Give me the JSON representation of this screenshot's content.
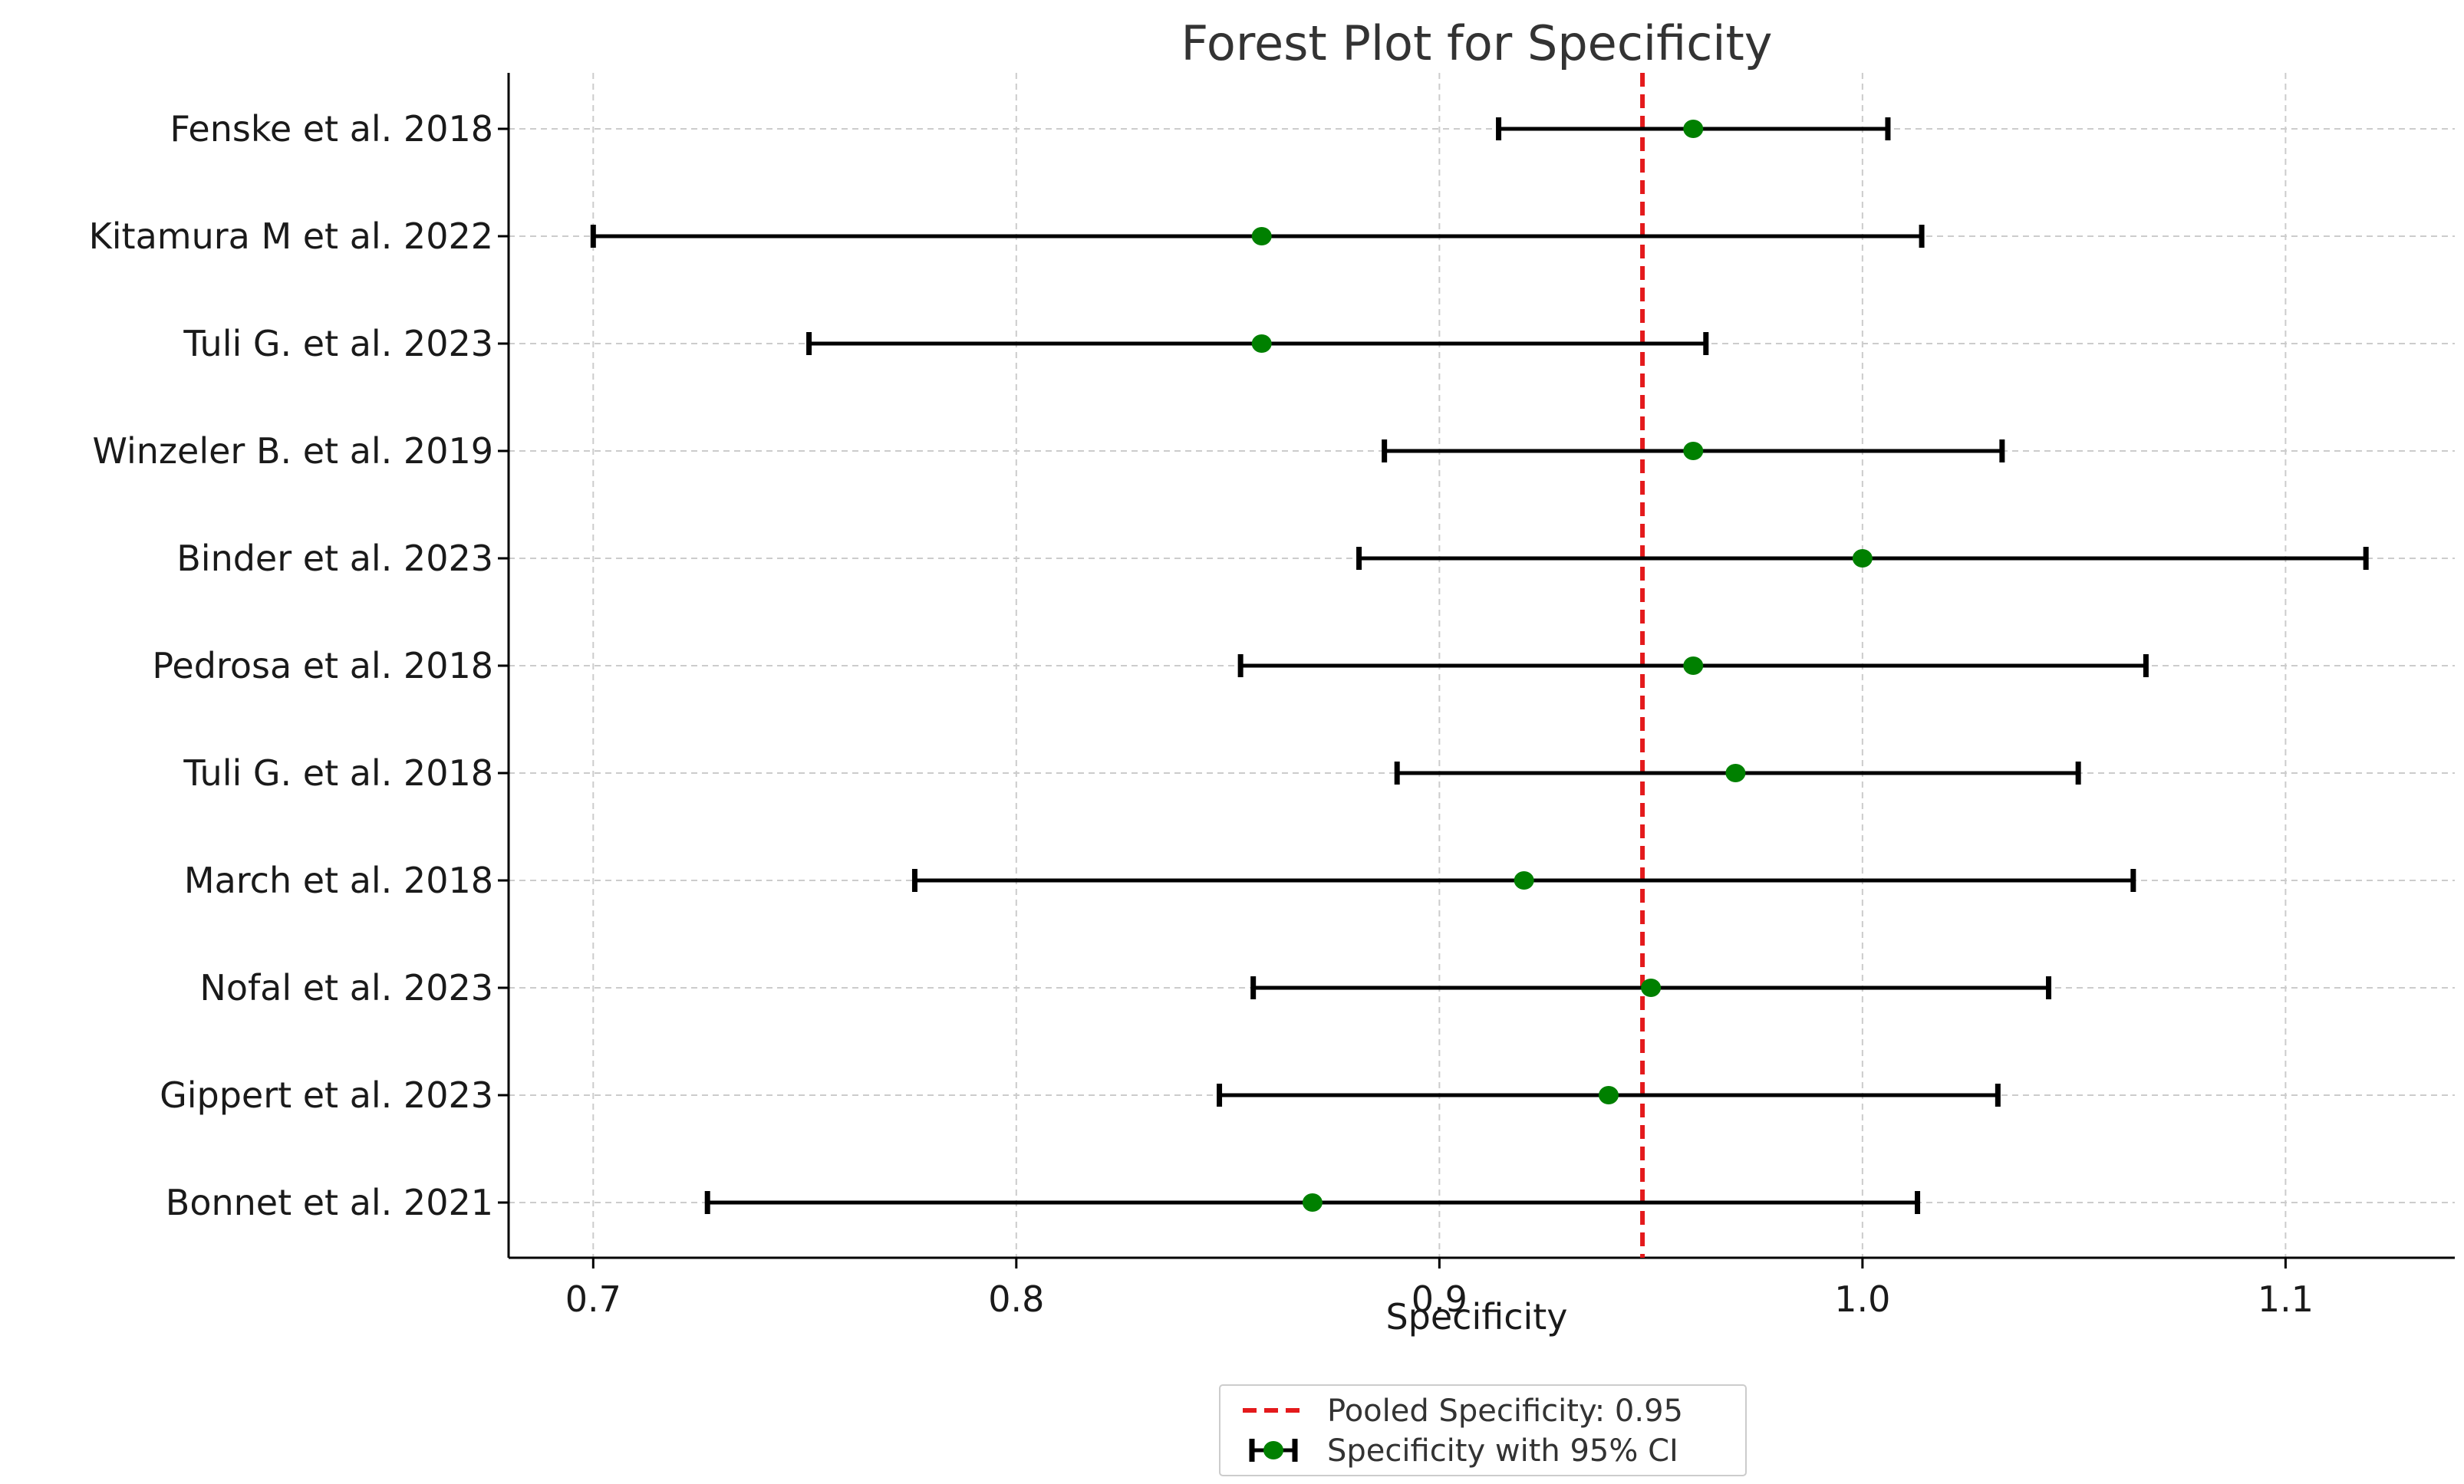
{
  "chart_data": {
    "type": "forest",
    "title": "Forest Plot for Specificity",
    "xlabel": "Specificity",
    "ylabel": "",
    "xlim": [
      0.68,
      1.14
    ],
    "x_ticks": [
      0.7,
      0.8,
      0.9,
      1.0,
      1.1
    ],
    "x_tick_labels": [
      "0.7",
      "0.8",
      "0.9",
      "1.0",
      "1.1"
    ],
    "grid": true,
    "studies": [
      {
        "label": "Fenske et al. 2018",
        "estimate": 0.96,
        "ci_lower": 0.914,
        "ci_upper": 1.006
      },
      {
        "label": "Kitamura M et al. 2022",
        "estimate": 0.858,
        "ci_lower": 0.7,
        "ci_upper": 1.014
      },
      {
        "label": "Tuli G. et al. 2023",
        "estimate": 0.858,
        "ci_lower": 0.751,
        "ci_upper": 0.963
      },
      {
        "label": "Winzeler B. et al. 2019",
        "estimate": 0.96,
        "ci_lower": 0.887,
        "ci_upper": 1.033
      },
      {
        "label": "Binder et al. 2023",
        "estimate": 1.0,
        "ci_lower": 0.881,
        "ci_upper": 1.119
      },
      {
        "label": "Pedrosa et al. 2018",
        "estimate": 0.96,
        "ci_lower": 0.853,
        "ci_upper": 1.067
      },
      {
        "label": "Tuli G. et al. 2018",
        "estimate": 0.97,
        "ci_lower": 0.89,
        "ci_upper": 1.051
      },
      {
        "label": "March et al. 2018",
        "estimate": 0.92,
        "ci_lower": 0.776,
        "ci_upper": 1.064
      },
      {
        "label": "Nofal et al. 2023",
        "estimate": 0.95,
        "ci_lower": 0.856,
        "ci_upper": 1.044
      },
      {
        "label": "Gippert et al. 2023",
        "estimate": 0.94,
        "ci_lower": 0.848,
        "ci_upper": 1.032
      },
      {
        "label": "Bonnet et al. 2021",
        "estimate": 0.87,
        "ci_lower": 0.727,
        "ci_upper": 1.013
      }
    ],
    "pooled": {
      "value": 0.948
    },
    "legend": {
      "placement": "bottom-center",
      "entries": [
        {
          "kind": "pooled-line",
          "label": "Pooled Specificity: 0.95"
        },
        {
          "kind": "ci-point",
          "label": "Specificity with 95% CI"
        }
      ]
    },
    "colors": {
      "point": "#008000",
      "ci_line": "#000000",
      "pooled_line": "#e41a1c",
      "grid": "#cccccc",
      "axis": "#000000"
    }
  }
}
